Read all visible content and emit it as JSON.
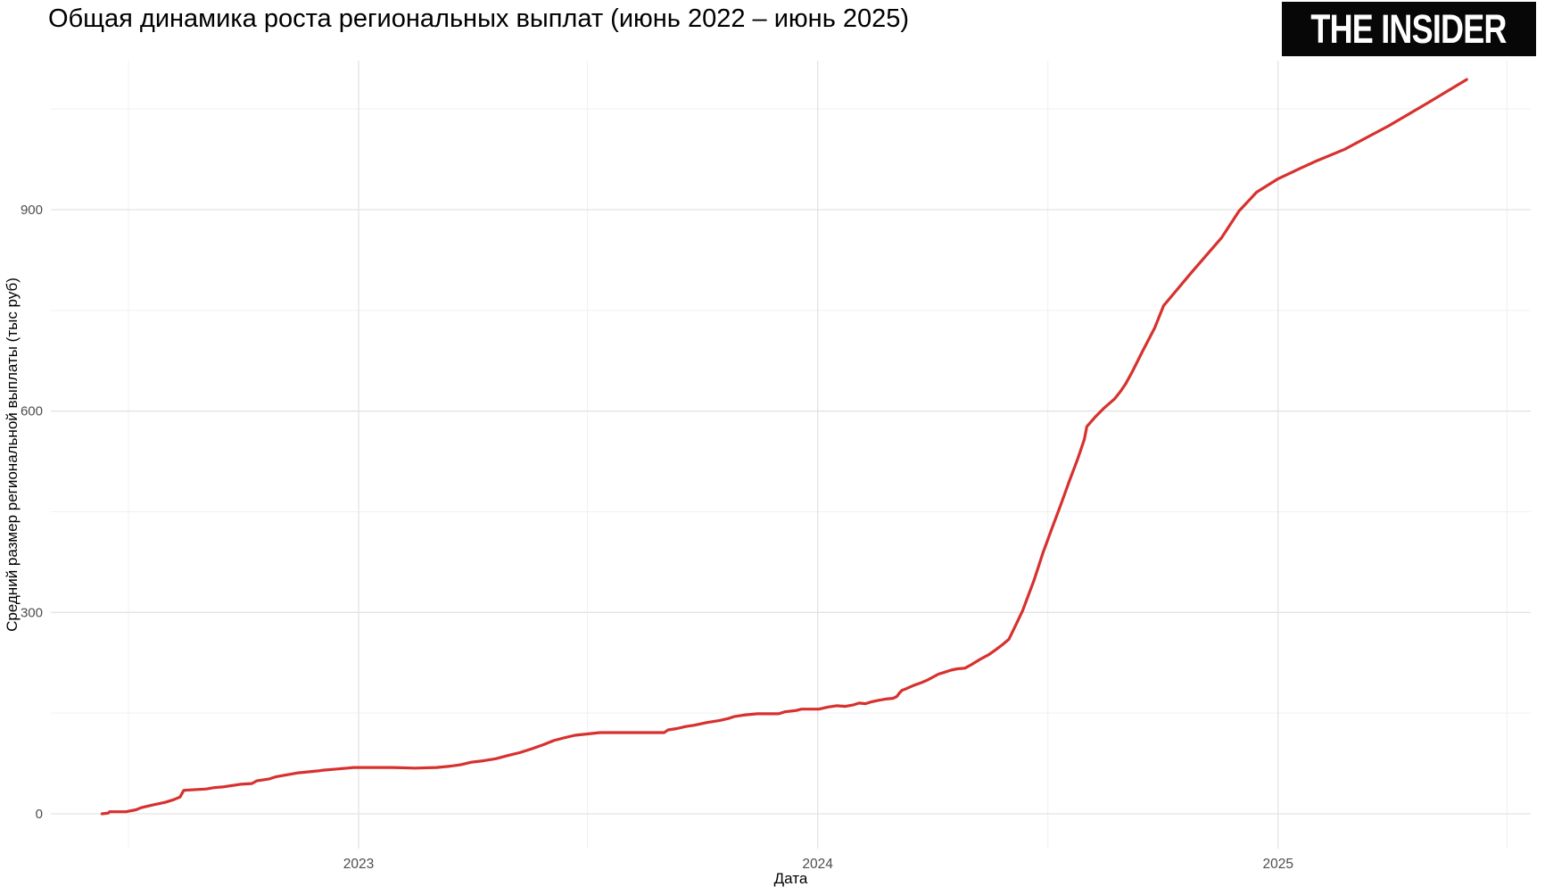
{
  "header": {
    "title": "Общая динамика роста региональных выплат (июнь 2022 – июнь 2025)",
    "logo": "THE INSIDER"
  },
  "chart_data": {
    "type": "line",
    "title": "Общая динамика роста региональных выплат (июнь 2022 – июнь 2025)",
    "xlabel": "Дата",
    "ylabel": "Средний размер региональной выплаты (тыс руб)",
    "grid": true,
    "legend_position": "none",
    "line_color": "#d7312e",
    "grid_major_color": "#e3e3e3",
    "grid_minor_color": "#f0f0f0",
    "tick_label_color": "#4d4d4d",
    "axis_title_color": "#000000",
    "ylim": [
      0,
      1100
    ],
    "x_domain": [
      "2022-06-11",
      "2025-05-31"
    ],
    "y_ticks": [
      {
        "label": "0",
        "value": 0
      },
      {
        "label": "300",
        "value": 300
      },
      {
        "label": "600",
        "value": 600
      },
      {
        "label": "900",
        "value": 900
      }
    ],
    "y_minor": [
      150,
      450,
      750,
      1050
    ],
    "x_ticks": [
      {
        "label": "2023",
        "date": "2023-01-01"
      },
      {
        "label": "2024",
        "date": "2024-01-01"
      },
      {
        "label": "2025",
        "date": "2025-01-01"
      }
    ],
    "x_minor": [
      "2022-07-02",
      "2023-07-02",
      "2024-07-02",
      "2025-07-02"
    ],
    "series": [
      {
        "name": "Средний размер региональной выплаты (тыс руб)",
        "points": [
          [
            "2022-06-11",
            0
          ],
          [
            "2022-06-16",
            1
          ],
          [
            "2022-06-17",
            3
          ],
          [
            "2022-06-30",
            3
          ],
          [
            "2022-07-08",
            6
          ],
          [
            "2022-07-12",
            9
          ],
          [
            "2022-07-21",
            13
          ],
          [
            "2022-07-31",
            17
          ],
          [
            "2022-08-07",
            21
          ],
          [
            "2022-08-12",
            25
          ],
          [
            "2022-08-15",
            35
          ],
          [
            "2022-09-02",
            37
          ],
          [
            "2022-09-08",
            39
          ],
          [
            "2022-09-15",
            40
          ],
          [
            "2022-09-29",
            44
          ],
          [
            "2022-10-08",
            45
          ],
          [
            "2022-10-12",
            49
          ],
          [
            "2022-10-22",
            52
          ],
          [
            "2022-10-27",
            55
          ],
          [
            "2022-11-08",
            59
          ],
          [
            "2022-11-14",
            61
          ],
          [
            "2022-11-30",
            64
          ],
          [
            "2022-12-04",
            65
          ],
          [
            "2022-12-23",
            68
          ],
          [
            "2022-12-28",
            69
          ],
          [
            "2023-01-28",
            69
          ],
          [
            "2023-02-15",
            68
          ],
          [
            "2023-03-04",
            69
          ],
          [
            "2023-03-15",
            71
          ],
          [
            "2023-03-23",
            73
          ],
          [
            "2023-04-01",
            77
          ],
          [
            "2023-04-10",
            79
          ],
          [
            "2023-04-20",
            82
          ],
          [
            "2023-04-30",
            87
          ],
          [
            "2023-05-09",
            91
          ],
          [
            "2023-05-19",
            97
          ],
          [
            "2023-05-28",
            103
          ],
          [
            "2023-06-05",
            109
          ],
          [
            "2023-06-13",
            113
          ],
          [
            "2023-06-22",
            117
          ],
          [
            "2023-07-02",
            119
          ],
          [
            "2023-07-12",
            121
          ],
          [
            "2023-09-01",
            121
          ],
          [
            "2023-09-04",
            125
          ],
          [
            "2023-09-11",
            127
          ],
          [
            "2023-09-18",
            130
          ],
          [
            "2023-09-25",
            132
          ],
          [
            "2023-10-05",
            136
          ],
          [
            "2023-10-15",
            139
          ],
          [
            "2023-10-22",
            142
          ],
          [
            "2023-10-27",
            145
          ],
          [
            "2023-11-03",
            147
          ],
          [
            "2023-11-14",
            149
          ],
          [
            "2023-12-01",
            149
          ],
          [
            "2023-12-06",
            152
          ],
          [
            "2023-12-15",
            154
          ],
          [
            "2023-12-19",
            156
          ],
          [
            "2024-01-02",
            156
          ],
          [
            "2024-01-09",
            159
          ],
          [
            "2024-01-16",
            161
          ],
          [
            "2024-01-23",
            160
          ],
          [
            "2024-01-29",
            162
          ],
          [
            "2024-02-03",
            165
          ],
          [
            "2024-02-08",
            164
          ],
          [
            "2024-02-13",
            167
          ],
          [
            "2024-02-18",
            169
          ],
          [
            "2024-02-24",
            171
          ],
          [
            "2024-03-01",
            172
          ],
          [
            "2024-03-04",
            175
          ],
          [
            "2024-03-06",
            180
          ],
          [
            "2024-03-08",
            184
          ],
          [
            "2024-03-11",
            186
          ],
          [
            "2024-03-17",
            191
          ],
          [
            "2024-03-23",
            195
          ],
          [
            "2024-03-28",
            199
          ],
          [
            "2024-04-02",
            204
          ],
          [
            "2024-04-06",
            208
          ],
          [
            "2024-04-11",
            211
          ],
          [
            "2024-04-16",
            214
          ],
          [
            "2024-04-21",
            216
          ],
          [
            "2024-04-27",
            217
          ],
          [
            "2024-05-02",
            222
          ],
          [
            "2024-05-09",
            230
          ],
          [
            "2024-05-16",
            237
          ],
          [
            "2024-05-22",
            245
          ],
          [
            "2024-05-27",
            252
          ],
          [
            "2024-06-01",
            260
          ],
          [
            "2024-06-07",
            283
          ],
          [
            "2024-06-12",
            303
          ],
          [
            "2024-06-21",
            348
          ],
          [
            "2024-06-28",
            388
          ],
          [
            "2024-07-05",
            424
          ],
          [
            "2024-07-12",
            459
          ],
          [
            "2024-07-19",
            495
          ],
          [
            "2024-07-26",
            530
          ],
          [
            "2024-07-31",
            558
          ],
          [
            "2024-08-02",
            577
          ],
          [
            "2024-08-09",
            592
          ],
          [
            "2024-08-16",
            605
          ],
          [
            "2024-08-24",
            618
          ],
          [
            "2024-08-29",
            630
          ],
          [
            "2024-09-02",
            641
          ],
          [
            "2024-09-07",
            658
          ],
          [
            "2024-09-15",
            688
          ],
          [
            "2024-09-25",
            724
          ],
          [
            "2024-10-02",
            757
          ],
          [
            "2024-10-24",
            806
          ],
          [
            "2024-11-17",
            858
          ],
          [
            "2024-12-01",
            898
          ],
          [
            "2024-12-15",
            926
          ],
          [
            "2025-01-01",
            946
          ],
          [
            "2025-01-19",
            962
          ],
          [
            "2025-02-01",
            973
          ],
          [
            "2025-02-23",
            990
          ],
          [
            "2025-02-28",
            995
          ],
          [
            "2025-03-30",
            1025
          ],
          [
            "2025-04-30",
            1059
          ],
          [
            "2025-05-31",
            1094
          ]
        ]
      }
    ]
  }
}
